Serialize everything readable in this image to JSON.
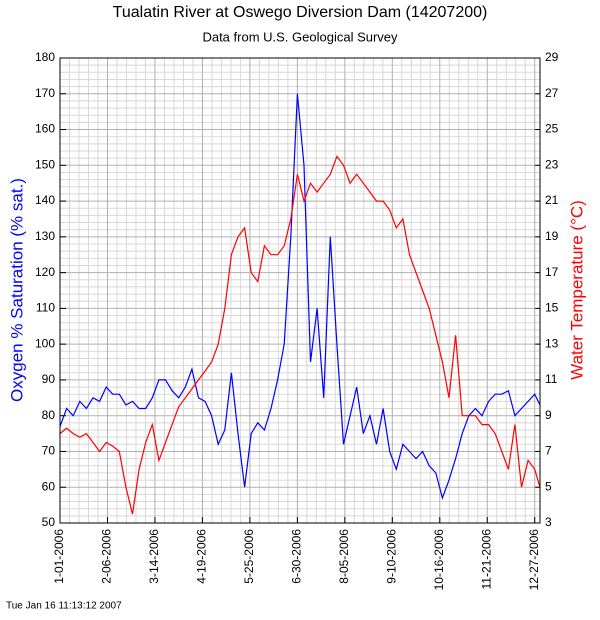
{
  "chart_data": {
    "type": "line",
    "title": "Tualatin River at Oswego Diversion Dam (14207200)",
    "subtitle": "Data from U.S. Geological Survey",
    "y_label": "Oxygen % Saturation (% sat.)",
    "y2_label": "Water Temperature (°C)",
    "footer": "Tue Jan 16 11:13:12 2007",
    "grid": true,
    "x": [
      "2006-01-01",
      "2006-01-06",
      "2006-01-11",
      "2006-01-16",
      "2006-01-21",
      "2006-01-26",
      "2006-01-31",
      "2006-02-05",
      "2006-02-10",
      "2006-02-15",
      "2006-02-20",
      "2006-02-25",
      "2006-03-02",
      "2006-03-07",
      "2006-03-12",
      "2006-03-17",
      "2006-03-22",
      "2006-03-27",
      "2006-04-01",
      "2006-04-06",
      "2006-04-11",
      "2006-04-16",
      "2006-04-21",
      "2006-04-26",
      "2006-05-01",
      "2006-05-06",
      "2006-05-11",
      "2006-05-16",
      "2006-05-21",
      "2006-05-26",
      "2006-05-31",
      "2006-06-05",
      "2006-06-10",
      "2006-06-15",
      "2006-06-20",
      "2006-06-25",
      "2006-06-30",
      "2006-07-05",
      "2006-07-10",
      "2006-07-15",
      "2006-07-20",
      "2006-07-25",
      "2006-07-30",
      "2006-08-04",
      "2006-08-09",
      "2006-08-14",
      "2006-08-19",
      "2006-08-24",
      "2006-08-29",
      "2006-09-03",
      "2006-09-08",
      "2006-09-13",
      "2006-09-18",
      "2006-09-23",
      "2006-09-28",
      "2006-10-03",
      "2006-10-08",
      "2006-10-13",
      "2006-10-18",
      "2006-10-23",
      "2006-10-28",
      "2006-11-02",
      "2006-11-07",
      "2006-11-12",
      "2006-11-17",
      "2006-11-22",
      "2006-11-27",
      "2006-12-02",
      "2006-12-07",
      "2006-12-12",
      "2006-12-17",
      "2006-12-22",
      "2006-12-27",
      "2006-12-31"
    ],
    "xlim": [
      "2006-01-01",
      "2006-12-31"
    ],
    "xticks": [
      {
        "value": "2006-01-01",
        "label": "1-01-2006"
      },
      {
        "value": "2006-02-06",
        "label": "2-06-2006"
      },
      {
        "value": "2006-03-14",
        "label": "3-14-2006"
      },
      {
        "value": "2006-04-19",
        "label": "4-19-2006"
      },
      {
        "value": "2006-05-25",
        "label": "5-25-2006"
      },
      {
        "value": "2006-06-30",
        "label": "6-30-2006"
      },
      {
        "value": "2006-08-05",
        "label": "8-05-2006"
      },
      {
        "value": "2006-09-10",
        "label": "9-10-2006"
      },
      {
        "value": "2006-10-16",
        "label": "10-16-2006"
      },
      {
        "value": "2006-11-21",
        "label": "11-21-2006"
      },
      {
        "value": "2006-12-27",
        "label": "12-27-2006"
      }
    ],
    "ylim": [
      50,
      180
    ],
    "yticks": [
      50,
      60,
      70,
      80,
      90,
      100,
      110,
      120,
      130,
      140,
      150,
      160,
      170,
      180
    ],
    "y2lim": [
      3,
      29
    ],
    "y2ticks": [
      3,
      5,
      7,
      9,
      11,
      13,
      15,
      17,
      19,
      21,
      23,
      25,
      27,
      29
    ],
    "series": [
      {
        "name": "Oxygen % Saturation",
        "color": "#0000ff",
        "values": [
          77,
          82,
          80,
          84,
          82,
          85,
          84,
          88,
          86,
          86,
          83,
          84,
          82,
          82,
          85,
          90,
          90,
          87,
          85,
          88,
          93,
          85,
          84,
          80,
          72,
          76,
          92,
          75,
          60,
          75,
          78,
          76,
          82,
          90,
          100,
          130,
          170,
          150,
          95,
          110,
          85,
          130,
          100,
          72,
          80,
          88,
          75,
          80,
          72,
          82,
          70,
          65,
          72,
          70,
          68,
          70,
          66,
          64,
          57,
          62,
          68,
          75,
          80,
          82,
          80,
          84,
          86,
          86,
          87,
          80,
          82,
          84,
          86,
          83
        ]
      },
      {
        "name": "Water Temperature",
        "color": "#ff0000",
        "axis": "y2",
        "values": [
          8,
          8.3,
          8,
          7.8,
          8,
          7.5,
          7,
          7.5,
          7.3,
          7,
          5,
          3.5,
          6,
          7.5,
          8.5,
          6.5,
          7.5,
          8.5,
          9.5,
          10,
          10.5,
          11,
          11.5,
          12,
          13,
          15,
          18,
          19,
          19.5,
          17,
          16.5,
          18.5,
          18,
          18,
          18.5,
          20,
          22.5,
          21,
          22,
          21.5,
          22,
          22.5,
          23.5,
          23,
          22,
          22.5,
          22,
          21.5,
          21,
          21,
          20.5,
          19.5,
          20,
          18,
          17,
          16,
          15,
          13.5,
          12,
          10,
          13.5,
          9,
          9,
          9,
          8.5,
          8.5,
          8,
          7,
          6,
          8.5,
          5,
          6.5,
          6,
          5
        ]
      }
    ]
  }
}
